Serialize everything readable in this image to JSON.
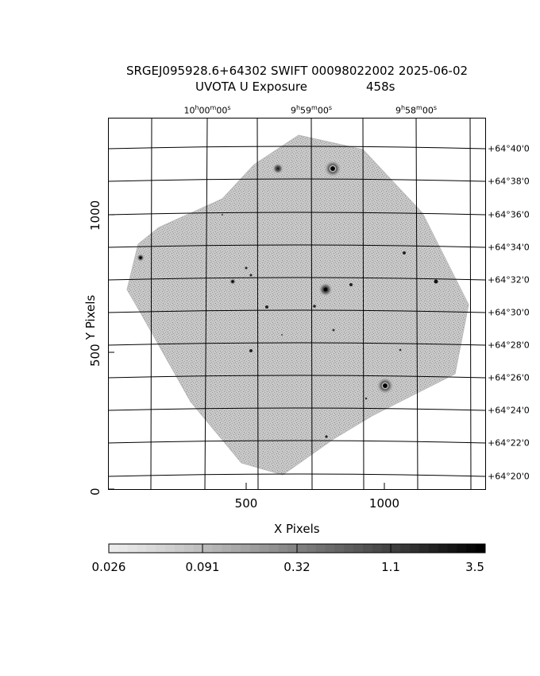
{
  "title": {
    "line1": "SRGEJ095928.6+64302 SWIFT 00098022002 2025-06-02",
    "line2_left": "UVOTA U Exposure",
    "line2_right": "458s"
  },
  "axes": {
    "xlabel": "X Pixels",
    "ylabel": "Y Pixels",
    "x_ticks": [
      "500",
      "1000"
    ],
    "y_ticks": [
      "0",
      "500",
      "1000"
    ],
    "x_range": [
      0,
      1360
    ],
    "y_range": [
      0,
      1340
    ]
  },
  "ra_ticks": [
    {
      "h": "10",
      "m": "00",
      "s": "00"
    },
    {
      "h": "9",
      "m": "59",
      "s": "00"
    },
    {
      "h": "9",
      "m": "58",
      "s": "00"
    }
  ],
  "dec_ticks": [
    "+64°40'0",
    "+64°38'0",
    "+64°36'0",
    "+64°34'0",
    "+64°32'0",
    "+64°30'0",
    "+64°28'0",
    "+64°26'0",
    "+64°24'0",
    "+64°22'0",
    "+64°20'0"
  ],
  "colorbar": {
    "labels": [
      "0.026",
      "0.091",
      "0.32",
      "1.1",
      "3.5"
    ],
    "scale": "log",
    "colormap": "grayscale"
  },
  "colors": {
    "image_fill": "#c4c4c4",
    "noise": "#9a9a9a",
    "grid": "#000000"
  }
}
